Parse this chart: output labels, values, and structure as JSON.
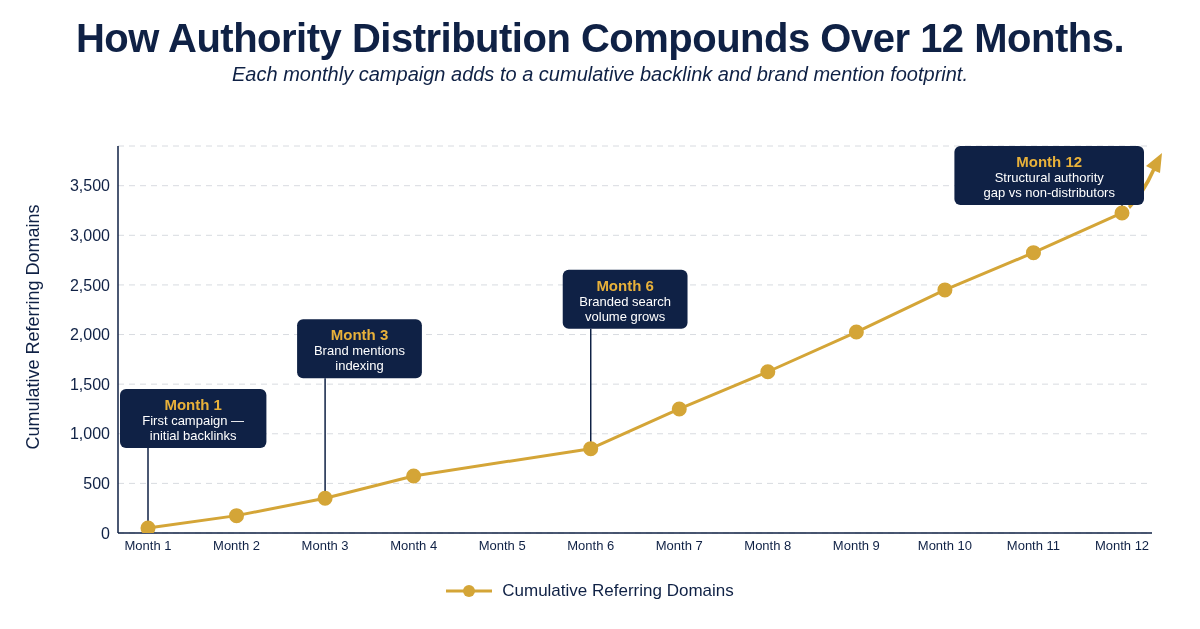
{
  "chart_data": {
    "type": "line",
    "title": "How Authority Distribution Compounds Over 12 Months.",
    "subtitle": "Each monthly campaign adds to a cumulative backlink and brand mention footprint.",
    "ylabel": "Cumulative Referring Domains",
    "categories": [
      "Month 1",
      "Month 2",
      "Month 3",
      "Month 4",
      "Month 5",
      "Month 6",
      "Month 7",
      "Month 8",
      "Month 9",
      "Month 10",
      "Month 11",
      "Month 12"
    ],
    "series": [
      {
        "name": "Cumulative Referring Domains",
        "color": "#d4a537",
        "values": [
          50,
          175,
          350,
          575,
          null,
          850,
          1250,
          1625,
          2025,
          2450,
          2825,
          3225
        ]
      }
    ],
    "ylim": [
      0,
      3900
    ],
    "yticks": [
      0,
      {
        "value": 500,
        "label": "500"
      },
      {
        "value": 1000,
        "label": "1,000"
      },
      {
        "value": 1500,
        "label": "1,500"
      },
      {
        "value": 2000,
        "label": "2,000"
      },
      {
        "value": 2500,
        "label": "2,500"
      },
      {
        "value": 3000,
        "label": "3,000"
      },
      {
        "value": 3500,
        "label": "3,500"
      }
    ],
    "grid": "y",
    "legend": "bottom",
    "marker": "circle",
    "line_style": "solid",
    "annotations": [
      {
        "text": "Month 1\nFirst campaign —\ninitial backlinks",
        "x": "Month 1",
        "y": 50
      },
      {
        "text": "Month 3\nBrand mentions\nindexing",
        "x": "Month 3",
        "y": 350
      },
      {
        "text": "Month 6\nBranded search\nvolume grows",
        "x": "Month 6",
        "y": 850
      },
      {
        "text": "Month 12\nStructural authority\ngap vs non-distributors",
        "x": "Month 12",
        "y": 3225
      }
    ]
  }
}
